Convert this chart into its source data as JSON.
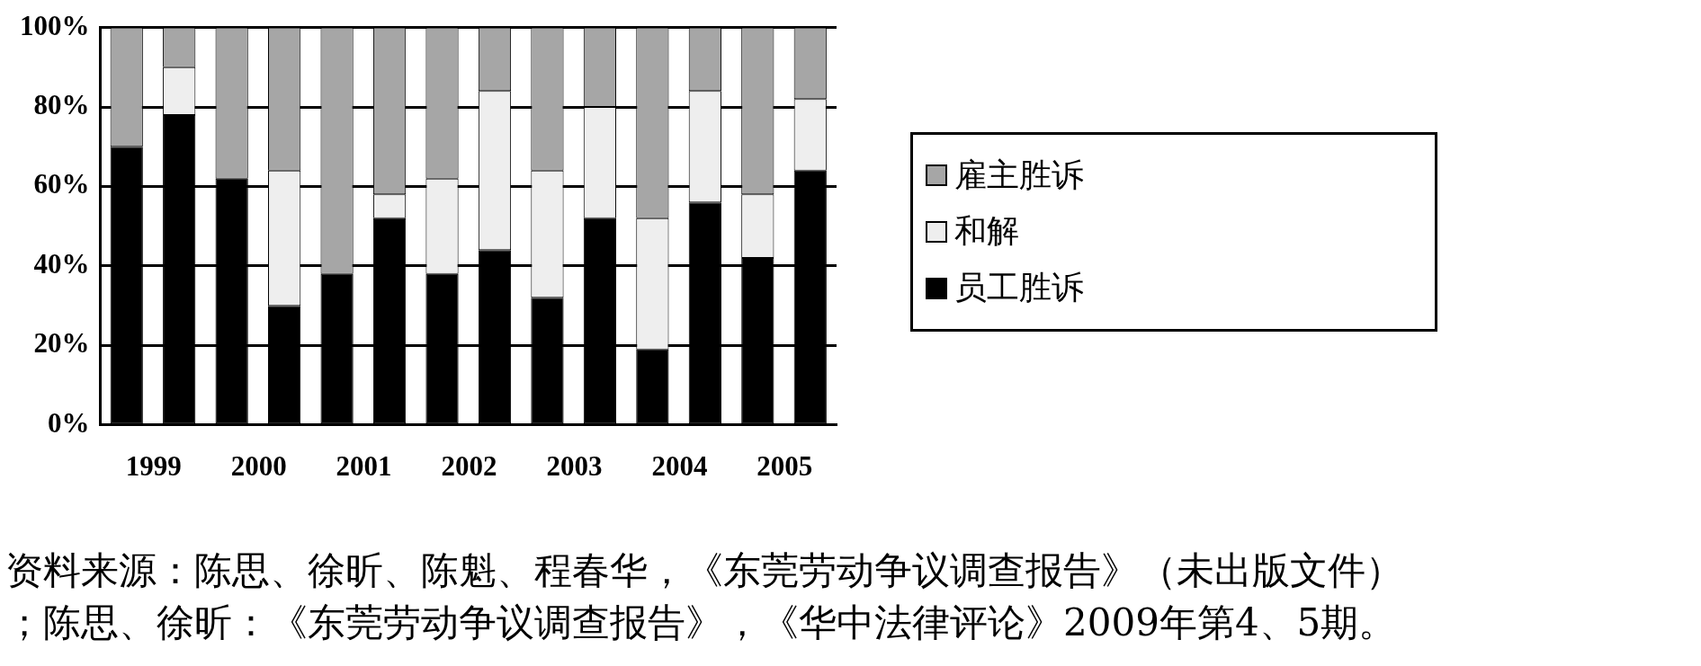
{
  "chart_data": {
    "type": "bar",
    "stacked": true,
    "categories": [
      "1999",
      null,
      "2000",
      null,
      "2001",
      null,
      "2002",
      null,
      "2003",
      null,
      "2004",
      null,
      "2005",
      null
    ],
    "series": [
      {
        "name": "员工胜诉",
        "color": "#000000",
        "values": [
          70,
          78,
          62,
          30,
          38,
          52,
          38,
          44,
          32,
          52,
          19,
          56,
          42,
          64
        ]
      },
      {
        "name": "和解",
        "color": "#eeeeee",
        "values": [
          0,
          12,
          0,
          34,
          0,
          6,
          24,
          40,
          32,
          28,
          33,
          28,
          16,
          18
        ]
      },
      {
        "name": "雇主胜诉",
        "color": "#a6a6a6",
        "values": [
          30,
          10,
          38,
          36,
          62,
          42,
          38,
          16,
          36,
          20,
          48,
          16,
          42,
          18
        ]
      }
    ],
    "ylim": [
      0,
      100
    ],
    "yticks": [
      {
        "value": 0,
        "label": "0%"
      },
      {
        "value": 20,
        "label": "20%"
      },
      {
        "value": 40,
        "label": "40%"
      },
      {
        "value": 60,
        "label": "60%"
      },
      {
        "value": 80,
        "label": "80%"
      },
      {
        "value": 100,
        "label": "100%"
      }
    ],
    "grid": "y",
    "legend": "right",
    "annotations": [
      "资料来源：陈思、徐昕、陈魁、程春华，《东莞劳动争议调查报告》（未出版文件）",
      "；陈思、徐昕：《东莞劳动争议调查报告》，《华中法律评论》2009年第4、5期。"
    ]
  }
}
